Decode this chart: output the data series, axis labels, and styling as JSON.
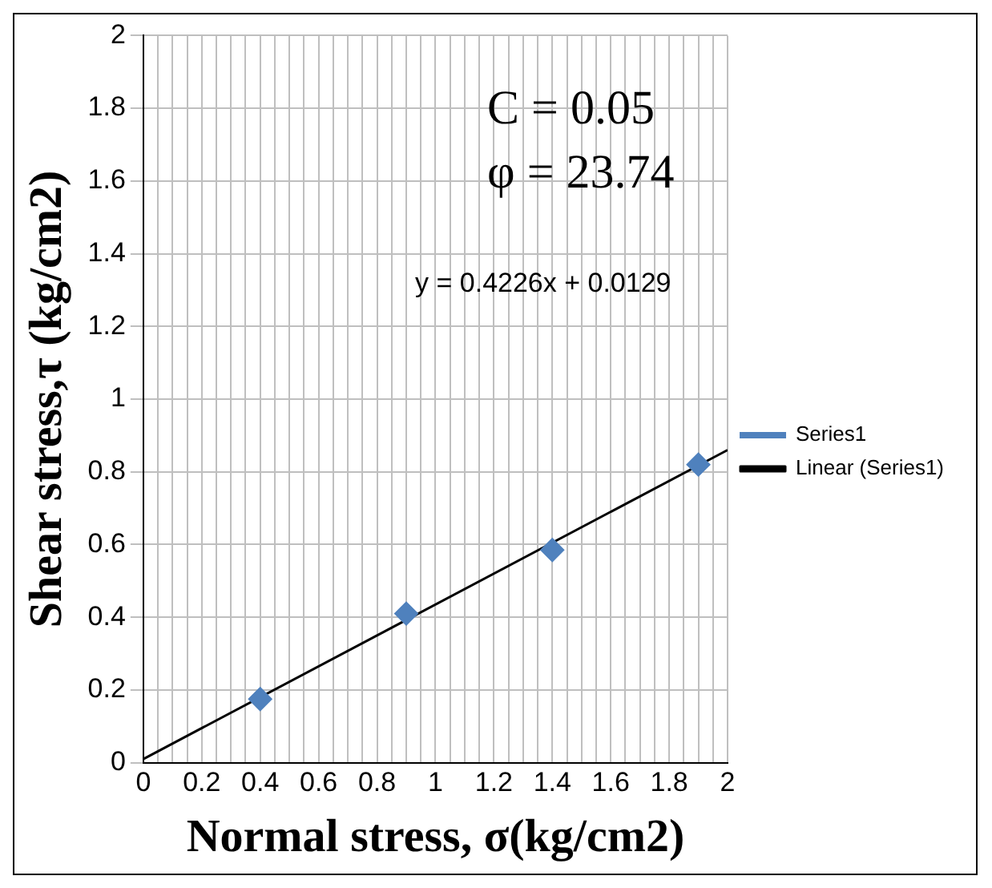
{
  "chart_data": {
    "type": "scatter",
    "xlabel": "Normal stress, σ(kg/cm2)",
    "ylabel": "Shear stress,τ (kg/cm2)",
    "series": [
      {
        "name": "Series1",
        "marker": "diamond",
        "color": "#4f81bd",
        "x": [
          0.4,
          0.9,
          1.4,
          1.9
        ],
        "values": [
          0.175,
          0.41,
          0.585,
          0.82
        ]
      },
      {
        "name": "Linear (Series1)",
        "type": "line",
        "color": "#000000",
        "x": [
          0,
          2
        ],
        "values": [
          0.01,
          0.86
        ]
      }
    ],
    "annotations": [
      "C = 0.05",
      "φ = 23.74",
      "y = 0.4226x + 0.0129"
    ],
    "grid": true,
    "legend": "right",
    "xlim": [
      0,
      2
    ],
    "ylim": [
      0,
      2
    ],
    "xticks": [
      0,
      {
        "value": 0.05,
        "label": null
      },
      {
        "value": 0.1,
        "label": null
      },
      {
        "value": 0.15,
        "label": null
      },
      0.2,
      {
        "value": 0.25,
        "label": null
      },
      {
        "value": 0.3,
        "label": null
      },
      {
        "value": 0.35,
        "label": null
      },
      0.4,
      {
        "value": 0.45,
        "label": null
      },
      {
        "value": 0.5,
        "label": null
      },
      {
        "value": 0.55,
        "label": null
      },
      0.6,
      {
        "value": 0.65,
        "label": null
      },
      {
        "value": 0.7,
        "label": null
      },
      {
        "value": 0.75,
        "label": null
      },
      0.8,
      {
        "value": 0.85,
        "label": null
      },
      {
        "value": 0.9,
        "label": null
      },
      {
        "value": 0.95,
        "label": null
      },
      1,
      {
        "value": 1.05,
        "label": null
      },
      {
        "value": 1.1,
        "label": null
      },
      {
        "value": 1.15,
        "label": null
      },
      1.2,
      {
        "value": 1.25,
        "label": null
      },
      {
        "value": 1.3,
        "label": null
      },
      {
        "value": 1.35,
        "label": null
      },
      1.4,
      {
        "value": 1.45,
        "label": null
      },
      {
        "value": 1.5,
        "label": null
      },
      {
        "value": 1.55,
        "label": null
      },
      1.6,
      {
        "value": 1.65,
        "label": null
      },
      {
        "value": 1.7,
        "label": null
      },
      {
        "value": 1.75,
        "label": null
      },
      1.8,
      {
        "value": 1.85,
        "label": null
      },
      {
        "value": 1.9,
        "label": null
      },
      {
        "value": 1.95,
        "label": null
      },
      2
    ],
    "yticks": [
      0,
      0.2,
      0.4,
      0.6,
      0.8,
      1,
      1.2,
      1.4,
      1.6,
      1.8,
      2
    ]
  }
}
